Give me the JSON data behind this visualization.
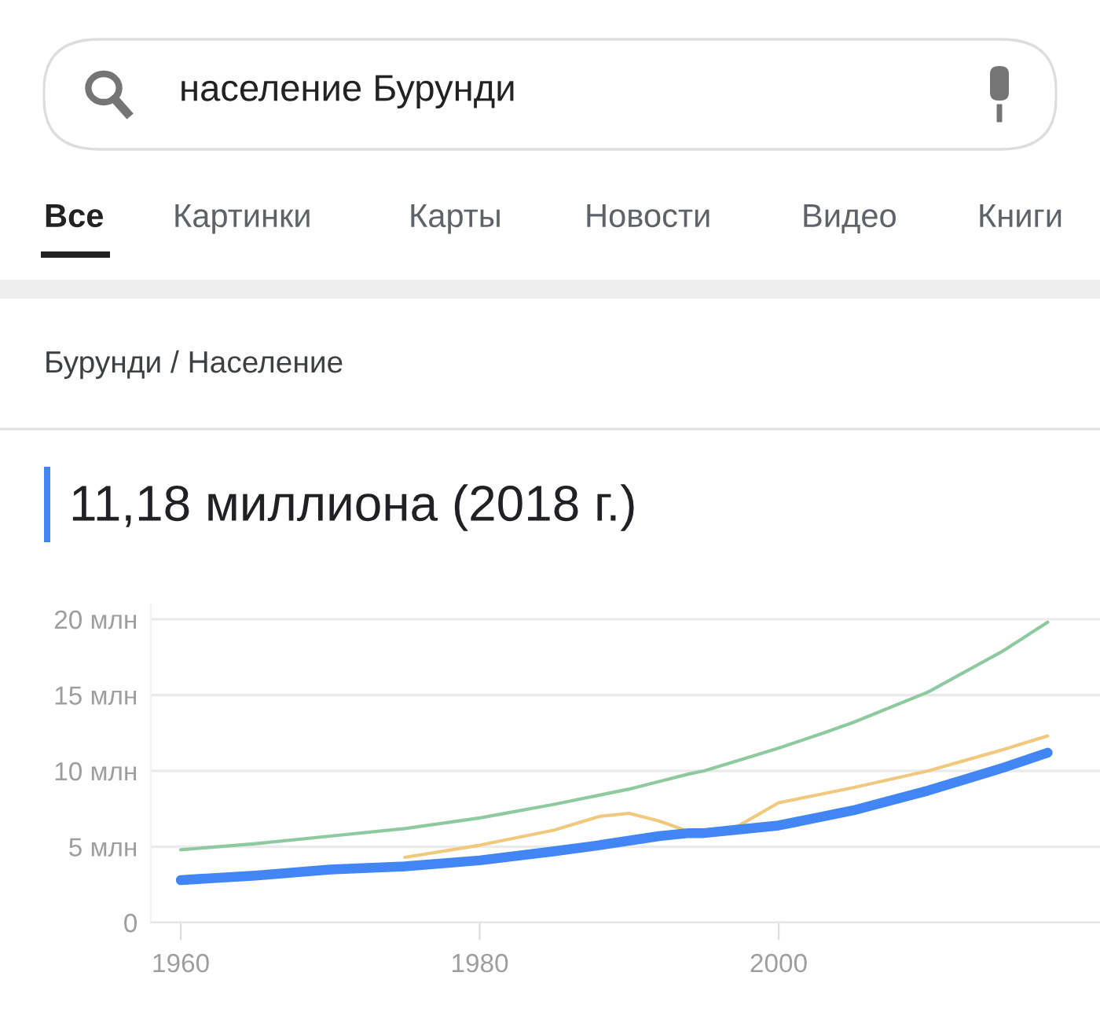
{
  "chart_data": {
    "type": "line",
    "title": "11,18 миллиона (2018 г.)",
    "subtitle": "Бурунди / Население",
    "annotations": [
      "население Бурунди",
      "Все",
      "Картинки",
      "Карты",
      "Новости",
      "Видео",
      "Книги"
    ],
    "x": [
      1960,
      1965,
      1970,
      1975,
      1980,
      1985,
      1988,
      1990,
      1992,
      1994,
      1995,
      1997,
      2000,
      2003,
      2005,
      2010,
      2015,
      2018
    ],
    "series": [
      {
        "color": "#8fc9a0",
        "values": [
          4.8,
          5.2,
          5.7,
          6.2,
          6.9,
          7.8,
          8.4,
          8.8,
          9.3,
          9.8,
          10.0,
          10.6,
          11.5,
          12.5,
          13.2,
          15.2,
          17.9,
          19.8
        ]
      },
      {
        "color": "#f0c97e",
        "values": [
          null,
          null,
          null,
          4.3,
          5.1,
          6.1,
          7.0,
          7.2,
          6.7,
          6.0,
          null,
          6.2,
          7.9,
          8.5,
          8.9,
          10.0,
          11.4,
          12.3
        ]
      },
      {
        "color": "#4285f4",
        "values": [
          2.8,
          3.1,
          3.5,
          3.7,
          4.1,
          4.7,
          5.1,
          5.4,
          5.7,
          5.9,
          5.9,
          6.1,
          6.4,
          7.0,
          7.4,
          8.7,
          10.2,
          11.2
        ]
      }
    ],
    "xlim": [
      1958,
      2021.5
    ],
    "ylim": [
      0,
      21
    ],
    "xticks": [
      1960,
      1980,
      2000
    ],
    "yticks": [
      0,
      {
        "value": 5,
        "label": "5 млн"
      },
      {
        "value": 10,
        "label": "10 млн"
      },
      {
        "value": 15,
        "label": "15 млн"
      },
      {
        "value": 20,
        "label": "20 млн"
      }
    ],
    "grid": "y",
    "legend": false,
    "marker": "none",
    "line_style": "solid"
  }
}
